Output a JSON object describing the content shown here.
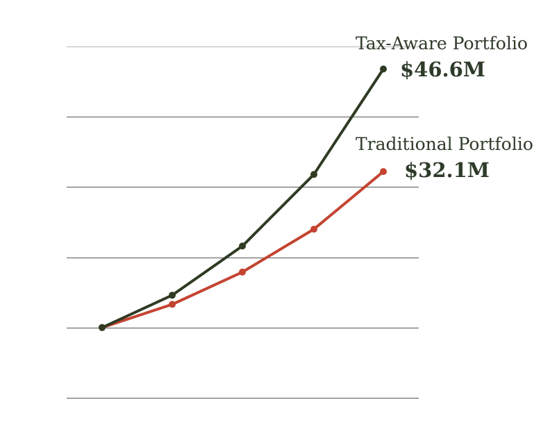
{
  "chart_data": {
    "type": "line",
    "x": [
      0,
      1,
      2,
      3,
      4
    ],
    "ylim": [
      -1,
      4
    ],
    "grid": true,
    "series": [
      {
        "name": "Tax-Aware Portfolio",
        "end_label": "$46.6M",
        "color": "#2f3b23",
        "values": [
          0,
          0.46,
          1.16,
          2.18,
          3.68
        ]
      },
      {
        "name": "Traditional Portfolio",
        "end_label": "$32.1M",
        "color": "#c44432",
        "values": [
          0,
          0.33,
          0.79,
          1.4,
          2.22
        ]
      }
    ]
  }
}
